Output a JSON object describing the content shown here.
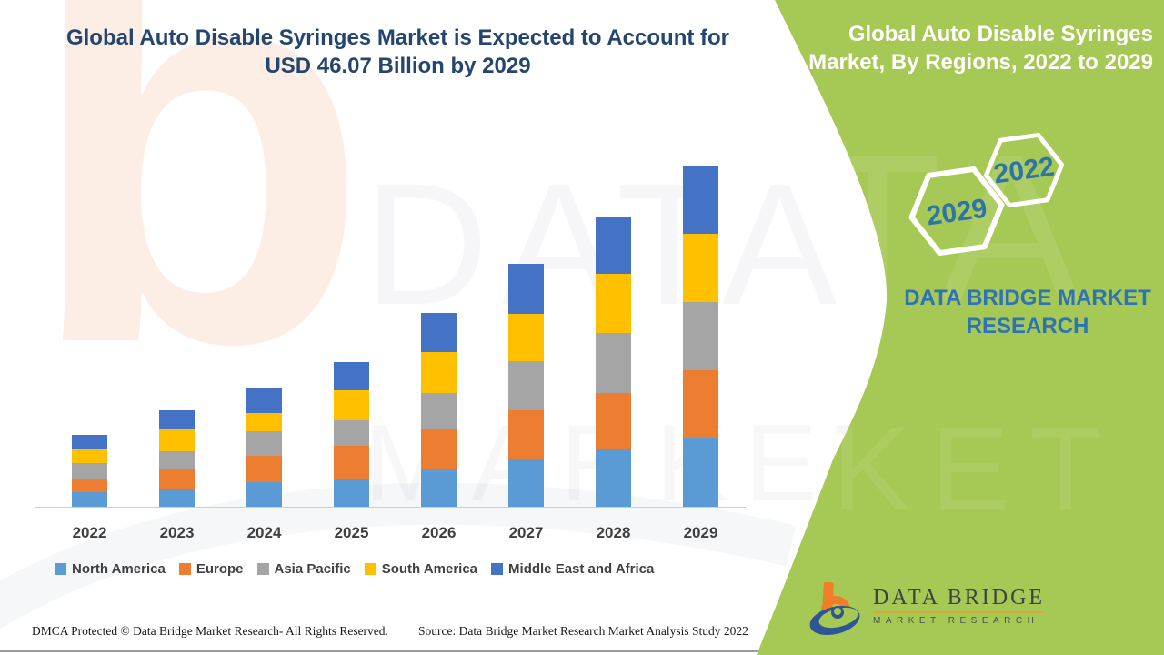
{
  "page": {
    "title_line1": "Global Auto Disable Syringes Market is Expected to Account for",
    "title_line2": "USD 46.07 Billion by 2029",
    "title_color": "#24456E"
  },
  "side_panel": {
    "title_line1": "Global Auto Disable Syringes",
    "title_line2": "Market, By Regions, 2022 to 2029",
    "hexagon_back_year": "2022",
    "hexagon_front_year": "2029",
    "brand_line1": "DATA BRIDGE MARKET",
    "brand_line2": "RESEARCH",
    "panel_color": "#A6C854",
    "hexagon_year_color": "#2F74A9",
    "brand_text_color": "#2E74B5"
  },
  "logo": {
    "name": "DATA BRIDGE",
    "subtitle": "MARKET RESEARCH"
  },
  "watermark": {
    "letter": "b",
    "row1": "DATA BRIDGE",
    "row2": "MARKET RESEARCH"
  },
  "footer": {
    "left": "DMCA Protected © Data Bridge Market Research- All Rights Reserved.",
    "right": "Source: Data Bridge Market Research Market Analysis Study 2022"
  },
  "chart_data": {
    "type": "bar",
    "stacked": true,
    "title": "Global Auto Disable Syringes Market, By Regions, 2022 to 2029",
    "unit": "USD Billion (values estimated from bar heights; 2029 total given as 46.07)",
    "categories": [
      "2022",
      "2023",
      "2024",
      "2025",
      "2026",
      "2027",
      "2028",
      "2029"
    ],
    "series": [
      {
        "name": "North America",
        "color": "#5B9BD5",
        "values": [
          2.0,
          2.4,
          3.3,
          3.7,
          5.0,
          6.4,
          7.7,
          9.2
        ]
      },
      {
        "name": "Europe",
        "color": "#ED7D31",
        "values": [
          1.8,
          2.7,
          3.6,
          4.6,
          5.5,
          6.7,
          7.7,
          9.3
        ]
      },
      {
        "name": "Asia Pacific",
        "color": "#A5A5A5",
        "values": [
          2.1,
          2.4,
          3.3,
          3.4,
          4.9,
          6.6,
          8.1,
          9.2
        ]
      },
      {
        "name": "South America",
        "color": "#FFC000",
        "values": [
          1.9,
          3.0,
          2.5,
          4.0,
          5.5,
          6.4,
          8.0,
          9.2
        ]
      },
      {
        "name": "Middle East and Africa",
        "color": "#4472C4",
        "values": [
          1.9,
          2.5,
          3.4,
          3.9,
          5.3,
          6.7,
          7.8,
          9.2
        ]
      }
    ],
    "totals_estimated": [
      9.7,
      13.0,
      16.1,
      19.6,
      26.2,
      32.8,
      39.3,
      46.1
    ],
    "ylim": [
      0,
      46.1
    ],
    "grid": false,
    "legend_position": "bottom"
  }
}
